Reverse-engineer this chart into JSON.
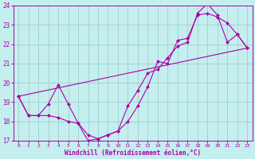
{
  "xlabel": "Windchill (Refroidissement éolien,°C)",
  "xlim": [
    -0.5,
    23.5
  ],
  "ylim": [
    17,
    24
  ],
  "yticks": [
    17,
    18,
    19,
    20,
    21,
    22,
    23,
    24
  ],
  "xticks": [
    0,
    1,
    2,
    3,
    4,
    5,
    6,
    7,
    8,
    9,
    10,
    11,
    12,
    13,
    14,
    15,
    16,
    17,
    18,
    19,
    20,
    21,
    22,
    23
  ],
  "bg_color": "#c5eeee",
  "grid_color": "#9ed0d0",
  "line_color": "#aa00aa",
  "line1_x": [
    0,
    1,
    2,
    3,
    4,
    5,
    6,
    7,
    8,
    9,
    10,
    11,
    12,
    13,
    14,
    15,
    16,
    17,
    18,
    19,
    20,
    21,
    22,
    23
  ],
  "line1_y": [
    19.3,
    18.3,
    18.3,
    18.9,
    19.9,
    18.9,
    17.9,
    17.3,
    17.1,
    17.3,
    17.5,
    18.0,
    18.8,
    19.8,
    21.1,
    21.0,
    22.2,
    22.3,
    23.5,
    23.6,
    23.4,
    23.1,
    22.5,
    21.8
  ],
  "line2_x": [
    0,
    1,
    2,
    3,
    4,
    5,
    6,
    7,
    8,
    9,
    10,
    11,
    12,
    13,
    14,
    15,
    16,
    17,
    18,
    19,
    20,
    21,
    22,
    23
  ],
  "line2_y": [
    19.3,
    18.3,
    18.3,
    18.3,
    18.2,
    18.0,
    17.9,
    17.0,
    17.1,
    17.3,
    17.5,
    18.8,
    19.6,
    20.5,
    20.7,
    21.3,
    21.9,
    22.1,
    23.6,
    24.1,
    23.5,
    22.1,
    22.5,
    21.8
  ],
  "line3_x": [
    0,
    23
  ],
  "line3_y": [
    19.3,
    21.8
  ]
}
